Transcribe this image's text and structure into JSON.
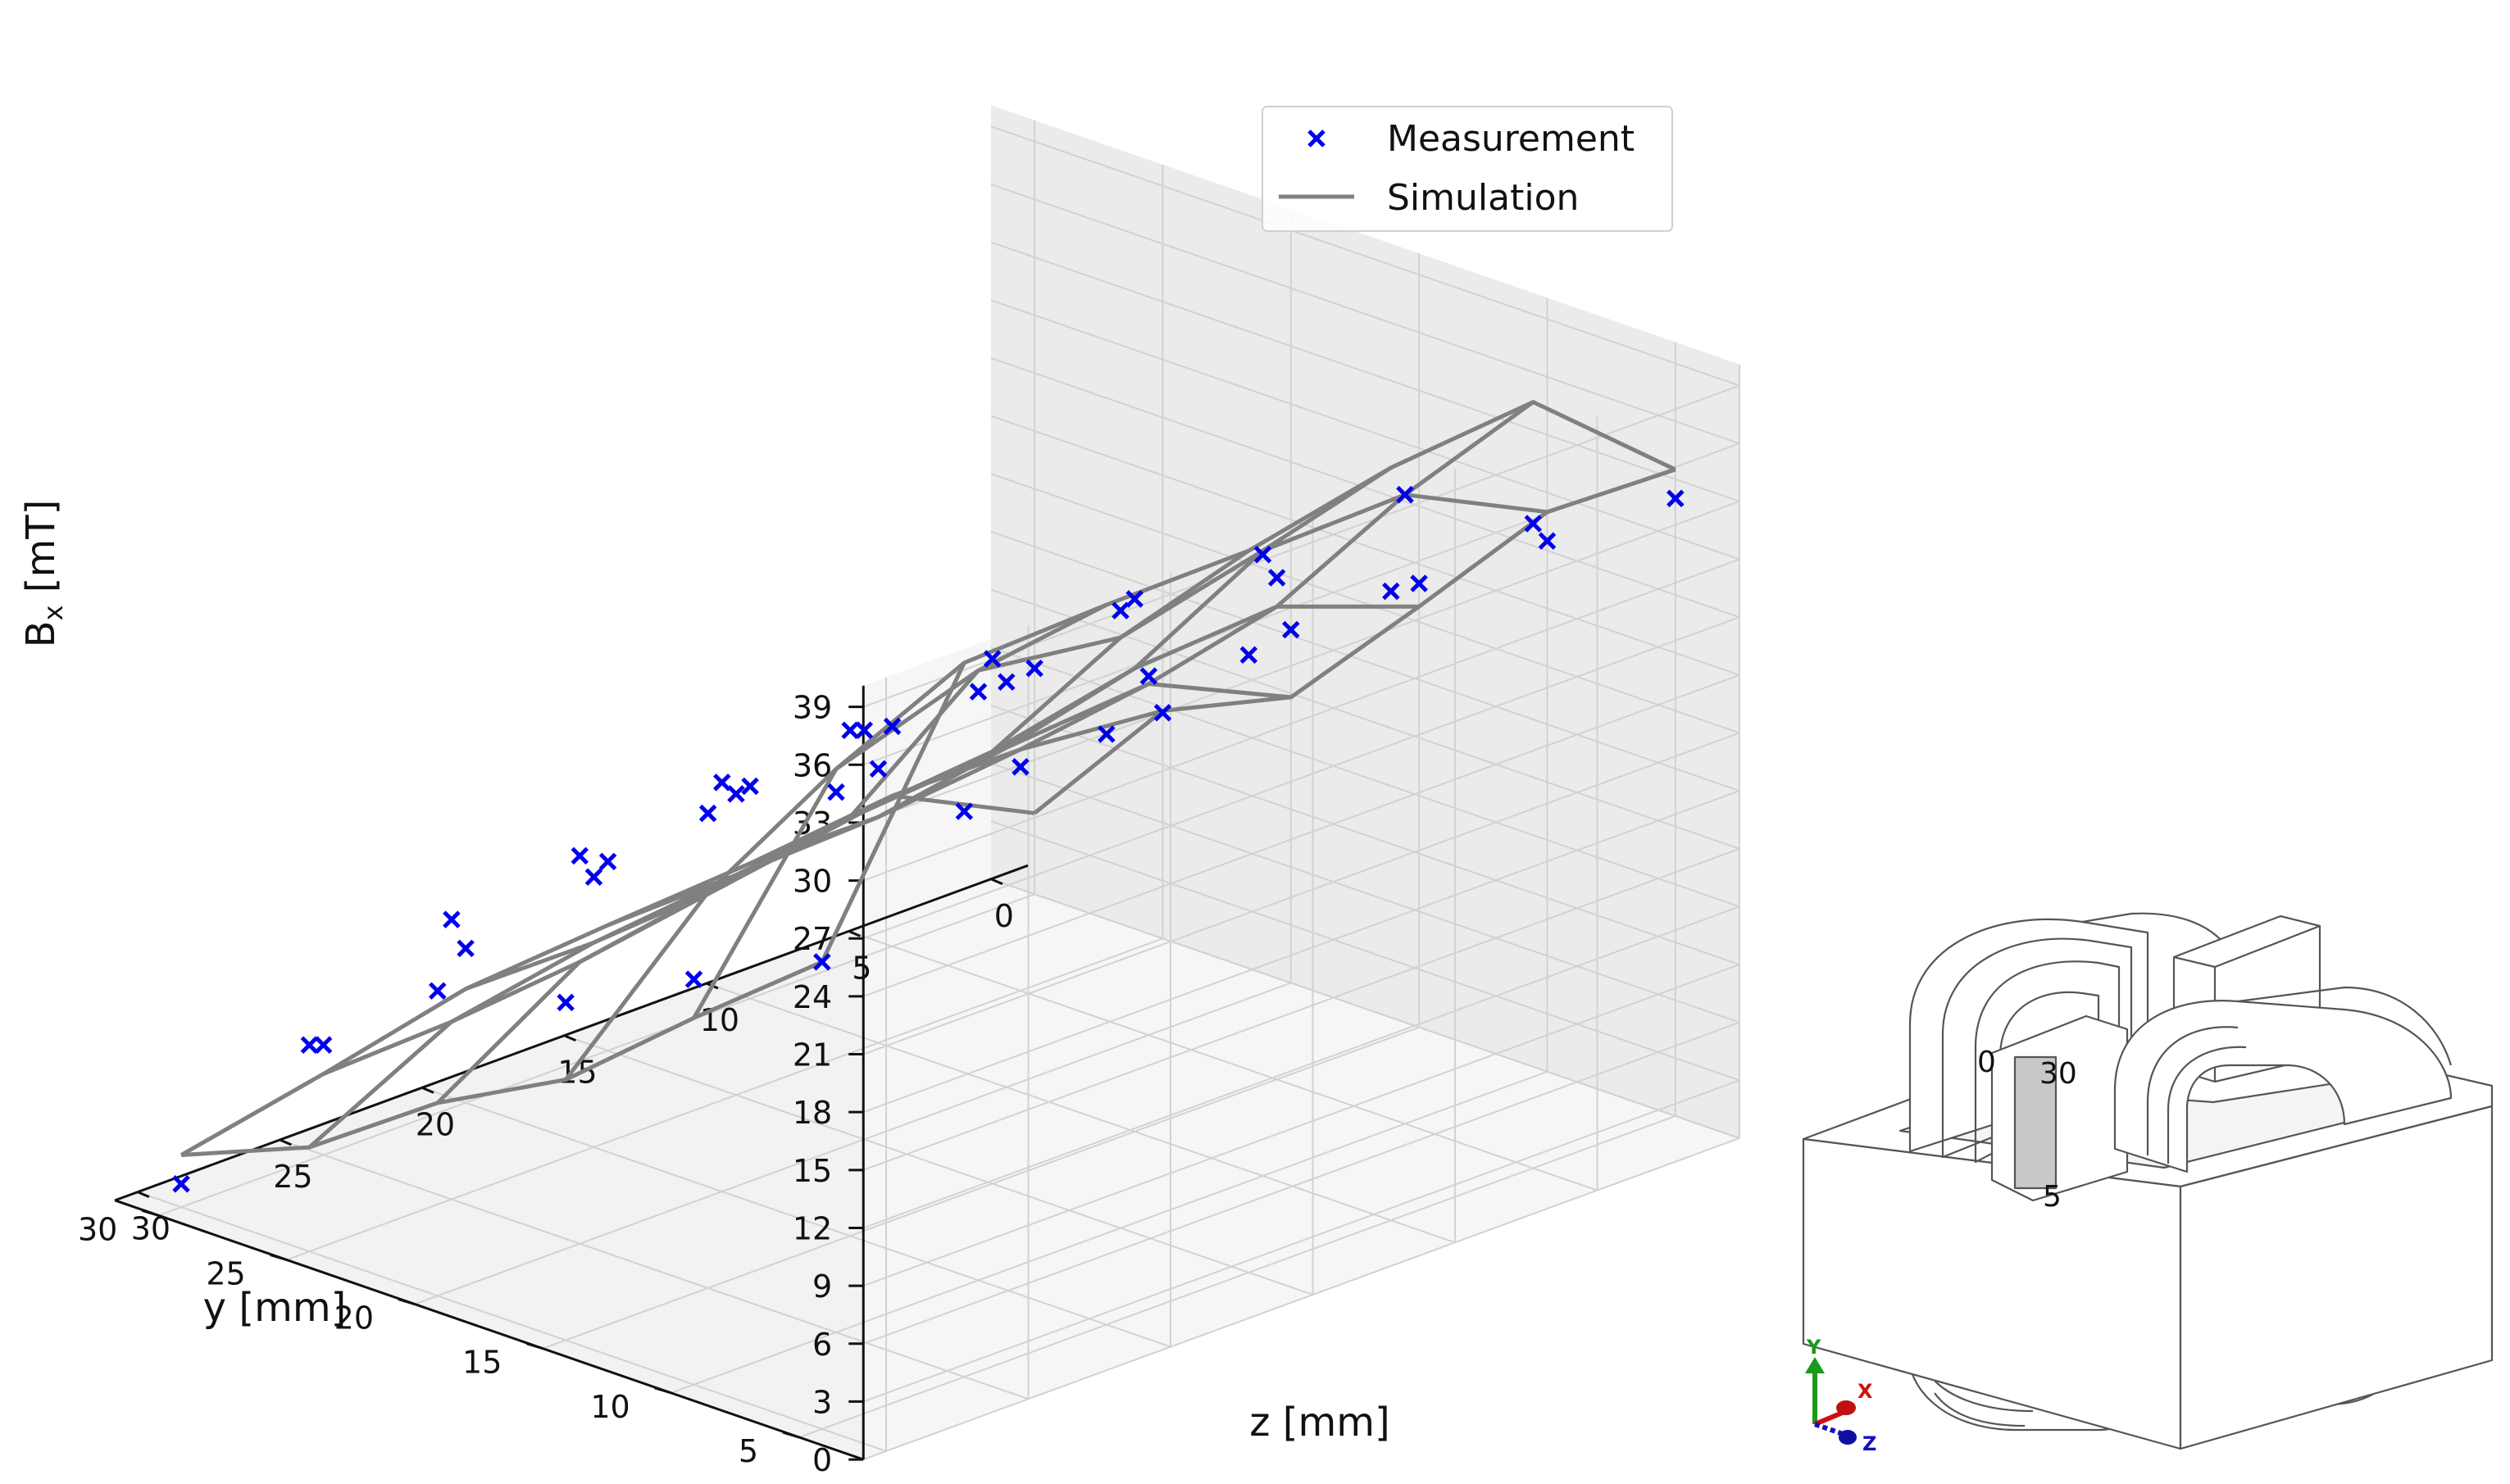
{
  "chart_data": {
    "type": "3d-scatter-wireframe",
    "title": "",
    "xlabel": "z [mm]",
    "ylabel": "y [mm]",
    "zlabel_base": "B",
    "zlabel_sub": "x",
    "zlabel_unit": " [mT]",
    "xlim": [
      0,
      30
    ],
    "ylim": [
      5,
      30
    ],
    "zlim": [
      0,
      39
    ],
    "x_ticks": [
      "0",
      "5",
      "10",
      "15",
      "20",
      "25",
      "30"
    ],
    "y_ticks": [
      "5",
      "10",
      "15",
      "20",
      "25",
      "30"
    ],
    "z_ticks": [
      "0",
      "3",
      "6",
      "9",
      "12",
      "15",
      "18",
      "21",
      "24",
      "27",
      "30",
      "33",
      "36",
      "39"
    ],
    "grid": true,
    "legend_position": "top-right",
    "series": [
      {
        "name": "Measurement",
        "kind": "scatter",
        "color": "#0000ee",
        "marker": "x",
        "points": [
          {
            "z": 30,
            "y": 5,
            "b": 24.2
          },
          {
            "z": 25,
            "y": 5,
            "b": 29.3
          },
          {
            "z": 20,
            "y": 5,
            "b": 30.6
          },
          {
            "z": 15,
            "y": 5,
            "b": 32.0
          },
          {
            "z": 10,
            "y": 5,
            "b": 32.6
          },
          {
            "z": 5,
            "y": 5,
            "b": 33.4
          },
          {
            "z": 0,
            "y": 5,
            "b": 32.0
          },
          {
            "z": 30,
            "y": 10,
            "b": 21.0
          },
          {
            "z": 25,
            "y": 10,
            "b": 28.0
          },
          {
            "z": 20,
            "y": 10,
            "b": 30.5
          },
          {
            "z": 15,
            "y": 10,
            "b": 32.0
          },
          {
            "z": 10,
            "y": 10,
            "b": 32.2
          },
          {
            "z": 5,
            "y": 10,
            "b": 32.6
          },
          {
            "z": 0,
            "y": 10,
            "b": 27.5
          },
          {
            "z": 30,
            "y": 15,
            "b": 17.5
          },
          {
            "z": 25,
            "y": 15,
            "b": 24.6
          },
          {
            "z": 20,
            "y": 15,
            "b": 26.2
          },
          {
            "z": 15,
            "y": 15,
            "b": 27.2
          },
          {
            "z": 10,
            "y": 15,
            "b": 27.6
          },
          {
            "z": 5,
            "y": 15,
            "b": 26.0
          },
          {
            "z": 0,
            "y": 15,
            "b": 23.0
          },
          {
            "z": 30,
            "y": 20,
            "b": 15.8
          },
          {
            "z": 25,
            "y": 20,
            "b": 20.1
          },
          {
            "z": 20,
            "y": 20,
            "b": 21.2
          },
          {
            "z": 15,
            "y": 20,
            "b": 21.2
          },
          {
            "z": 10,
            "y": 20,
            "b": 21.0
          },
          {
            "z": 5,
            "y": 20,
            "b": 18.6
          },
          {
            "z": 0,
            "y": 20,
            "b": 18.3
          },
          {
            "z": 30,
            "y": 25,
            "b": 10.7
          },
          {
            "z": 25,
            "y": 25,
            "b": 14.5
          },
          {
            "z": 20,
            "y": 25,
            "b": 14.0
          },
          {
            "z": 15,
            "y": 25,
            "b": 15.6
          },
          {
            "z": 10,
            "y": 25,
            "b": 14.2
          },
          {
            "z": 5,
            "y": 25,
            "b": 11.6
          },
          {
            "z": 0,
            "y": 25,
            "b": 11.7
          },
          {
            "z": 30,
            "y": 30,
            "b": 1.2
          },
          {
            "z": 25,
            "y": 30,
            "b": 5.7
          },
          {
            "z": 20,
            "y": 30,
            "b": 8.0
          },
          {
            "z": 15,
            "y": 30,
            "b": 9.8
          },
          {
            "z": 10,
            "y": 30,
            "b": 11.0
          },
          {
            "z": 5,
            "y": 30,
            "b": 11.4
          },
          {
            "z": 0,
            "y": 30,
            "b": 11.7
          }
        ]
      },
      {
        "name": "Simulation",
        "kind": "wireframe",
        "color": "#808080",
        "z": [
          30,
          25,
          20,
          15,
          10,
          5,
          0
        ],
        "y": [
          5,
          10,
          15,
          20,
          25,
          30
        ],
        "b": [
          [
            24.2,
            37.0,
            37.3,
            37.4,
            39.0,
            39.7,
            33.5
          ],
          [
            19.0,
            29.2,
            31.6,
            30.6,
            32.4,
            32.6,
            29.0
          ],
          [
            13.5,
            20.5,
            21.7,
            22.4,
            24.0,
            24.5,
            21.8
          ],
          [
            10.0,
            14.6,
            15.8,
            17.0,
            17.6,
            18.2,
            14.8
          ],
          [
            5.4,
            9.2,
            10.6,
            11.4,
            11.7,
            12.5,
            11.8
          ],
          [
            2.7,
            4.2,
            5.9,
            6.5,
            7.0,
            7.8,
            4.2
          ]
        ]
      }
    ]
  },
  "inset": {
    "labels": {
      "zero": "0",
      "thirty": "30",
      "five": "5"
    },
    "triad": {
      "y": "Y",
      "x": "X",
      "z": "Z"
    },
    "colors": {
      "y": "#1a9a1a",
      "x": "#d01010",
      "z": "#1010c0"
    }
  }
}
